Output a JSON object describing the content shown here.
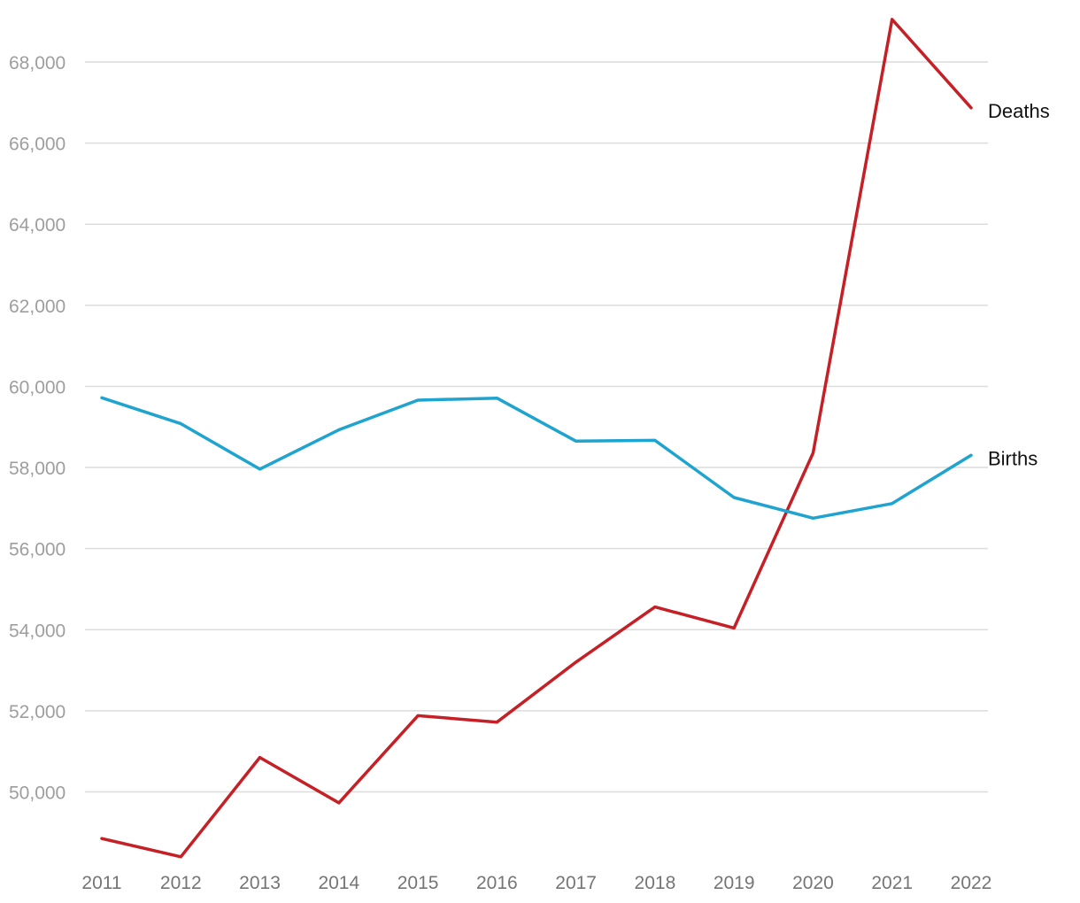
{
  "chart_data": {
    "type": "line",
    "title": "",
    "xlabel": "",
    "ylabel": "",
    "x": [
      "2011",
      "2012",
      "2013",
      "2014",
      "2015",
      "2016",
      "2017",
      "2018",
      "2019",
      "2020",
      "2021",
      "2022"
    ],
    "ylim": [
      48000,
      69000
    ],
    "yticks": [
      50000,
      52000,
      54000,
      56000,
      58000,
      60000,
      62000,
      64000,
      66000,
      68000
    ],
    "ytick_labels": [
      "50,000",
      "52,000",
      "54,000",
      "56,000",
      "58,000",
      "60,000",
      "62,000",
      "64,000",
      "66,000",
      "68,000"
    ],
    "grid": true,
    "legend": "inline labels at line ends",
    "series": [
      {
        "name": "Deaths",
        "color": "#c62027",
        "values": [
          48850,
          48400,
          50850,
          49730,
          51880,
          51720,
          53200,
          54560,
          54040,
          58360,
          69050,
          66870
        ]
      },
      {
        "name": "Births",
        "color": "#1fa3cf",
        "values": [
          59720,
          59080,
          57960,
          58930,
          59660,
          59710,
          58650,
          58670,
          57260,
          56750,
          57110,
          58300
        ]
      }
    ]
  }
}
